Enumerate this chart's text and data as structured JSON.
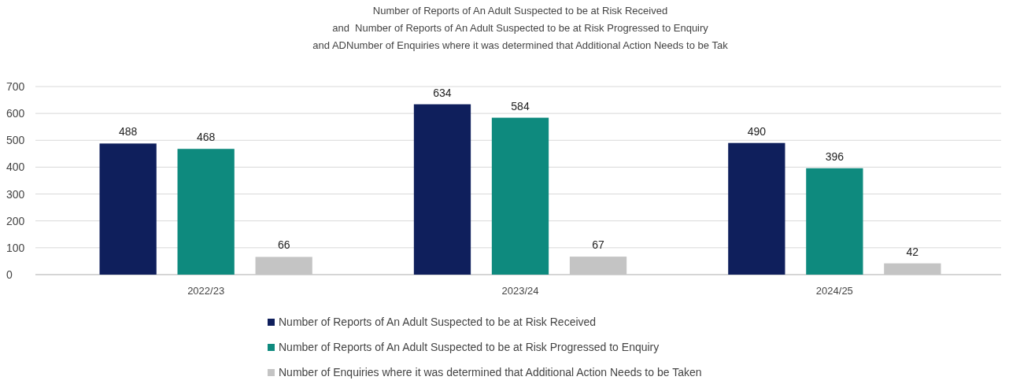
{
  "chart_data": {
    "type": "bar",
    "title": "Number of Reports of An Adult Suspected to be at Risk Received\nand  Number of Reports of An Adult Suspected to be at Risk Progressed to Enquiry\nand ADNumber of Enquiries where it was determined that Additional Action Needs to be Tak",
    "categories": [
      "2022/23",
      "2023/24",
      "2024/25"
    ],
    "series": [
      {
        "name": "Number of Reports of An Adult Suspected to be at Risk Received",
        "color": "#0f1f5c",
        "values": [
          488,
          634,
          490
        ]
      },
      {
        "name": "Number of Reports of An Adult Suspected to be at Risk Progressed to Enquiry",
        "color": "#0e8a7e",
        "values": [
          468,
          584,
          396
        ]
      },
      {
        "name": "Number of Enquiries where it was determined that Additional Action Needs to be Taken",
        "color": "#c4c4c4",
        "values": [
          66,
          67,
          42
        ]
      }
    ],
    "ylim": [
      0,
      700
    ],
    "yticks": [
      0,
      100,
      200,
      300,
      400,
      500,
      600,
      700
    ],
    "grid": "y",
    "legend": "bottom",
    "data_labels": true
  }
}
